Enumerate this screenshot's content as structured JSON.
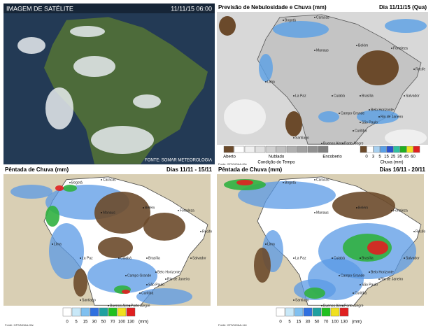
{
  "satellite": {
    "title": "IMAGEM DE SATÉLITE",
    "date": "11/11/15 06:00",
    "source": "FONTE: SOMAR METEOROLOGIA"
  },
  "forecast": {
    "title": "Previsão de Nebulosidade e Chuva (mm)",
    "date": "Dia 11/11/15 (Qua)",
    "condition": {
      "labels": [
        "Aberto",
        "Nublado",
        "Encoberto"
      ],
      "caption": "Condição do Tempo",
      "colors": [
        "#6b4a2b",
        "#ffffff",
        "#f0f0f0",
        "#e0e0e0",
        "#d0d0d0",
        "#c0c0c0",
        "#b0b0b0",
        "#a0a0a0",
        "#909090",
        "#808080"
      ]
    },
    "rain": {
      "ticks": [
        0,
        3,
        5,
        15,
        25,
        35,
        45,
        60
      ],
      "caption": "Chuva (mm)",
      "colors": [
        "#6b4a2b",
        "#ffffff",
        "#a8d0f0",
        "#5aa0e6",
        "#2850d0",
        "#30c0a0",
        "#20b020",
        "#f0e020",
        "#e02020"
      ]
    },
    "source": "Fonte: GFS/NOAA-00z",
    "cities": [
      "Bogotá",
      "Caracas",
      "Manaus",
      "Belém",
      "Fortaleza",
      "Recife",
      "Salvador",
      "Brasília",
      "Belo Horizonte",
      "Rio de Janeiro",
      "São Paulo",
      "Curitiba",
      "Porto Alegre",
      "Buenos Aires",
      "Santiago",
      "Lima",
      "La Paz",
      "Cuiabá",
      "Campo Grande"
    ]
  },
  "pentads": [
    {
      "title": "Pêntada de Chuva (mm)",
      "date": "Dias 11/11 - 15/11",
      "ticks": [
        0,
        5,
        15,
        30,
        50,
        70,
        100,
        130
      ],
      "unit": "(mm)",
      "colors": [
        "#ffffff",
        "#c8e8f8",
        "#80c0f0",
        "#3070e0",
        "#20a0a0",
        "#20c020",
        "#f0e020",
        "#e02020"
      ],
      "source": "Fonte: GFS/NOAA-00z",
      "cities": [
        "Bogotá",
        "Caracas",
        "Manaus",
        "Belém",
        "Fortaleza",
        "Recife",
        "Salvador",
        "Brasília",
        "Belo Horizonte",
        "Rio de Janeiro",
        "São Paulo",
        "Curitiba",
        "Porto Alegre",
        "Buenos Aires",
        "Santiago",
        "Lima",
        "La Paz",
        "Cuiabá",
        "Campo Grande"
      ]
    },
    {
      "title": "Pêntada de Chuva (mm)",
      "date": "Dias 16/11 - 20/11",
      "ticks": [
        0,
        5,
        15,
        30,
        50,
        70,
        100,
        130
      ],
      "unit": "(mm)",
      "colors": [
        "#ffffff",
        "#c8e8f8",
        "#80c0f0",
        "#3070e0",
        "#20a0a0",
        "#20c020",
        "#f0e020",
        "#e02020"
      ],
      "source": "Fonte: GFS/NOAA-12z",
      "cities": [
        "Bogotá",
        "Caracas",
        "Manaus",
        "Belém",
        "Fortaleza",
        "Recife",
        "Salvador",
        "Brasília",
        "Belo Horizonte",
        "Rio de Janeiro",
        "São Paulo",
        "Curitiba",
        "Porto Alegre",
        "Buenos Aires",
        "Santiago",
        "Lima",
        "La Paz",
        "Cuiabá",
        "Campo Grande"
      ]
    }
  ]
}
